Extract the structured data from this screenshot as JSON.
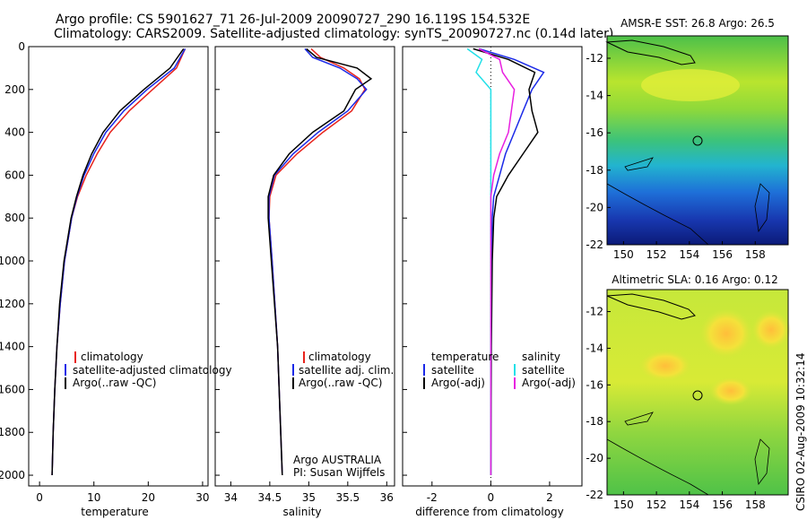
{
  "header": {
    "line1": "Argo profile: CS 5901627_71 26-Jul-2009 20090727_290 16.119S 154.532E",
    "line2": "Climatology: CARS2009. Satellite-adjusted climatology: synTS_20090727.nc (0.14d later)"
  },
  "colors": {
    "climatology": "#e8231c",
    "satellite": "#1b2ae8",
    "argo": "#000000",
    "sat_sal": "#22e0e8",
    "argo_adj_sal": "#e81fe0"
  },
  "chart_data": [
    {
      "type": "line",
      "id": "temperature",
      "xlabel": "temperature",
      "ylabel": "",
      "xlim": [
        -2,
        31
      ],
      "ylim": [
        2050,
        0
      ],
      "xticks": [
        "0",
        "10",
        "20",
        "30"
      ],
      "yticks": [
        "0",
        "200",
        "400",
        "600",
        "800",
        "1000",
        "1200",
        "1400",
        "1600",
        "1800",
        "2000"
      ],
      "legend": [
        "climatology",
        "satellite-adjusted climatology",
        "Argo(..raw -QC)"
      ],
      "series": [
        {
          "name": "climatology",
          "depth": [
            10,
            100,
            200,
            300,
            400,
            500,
            600,
            700,
            800,
            1000,
            1200,
            1400,
            1600,
            1800,
            2000
          ],
          "values": [
            26.8,
            25.2,
            20.8,
            16.5,
            13.0,
            10.6,
            8.6,
            7.0,
            5.9,
            4.6,
            3.8,
            3.2,
            2.8,
            2.5,
            2.3
          ]
        },
        {
          "name": "satellite-adjusted climatology",
          "depth": [
            10,
            100,
            200,
            300,
            400,
            500,
            600,
            700,
            800,
            1000,
            1200,
            1400,
            1600,
            1800,
            2000
          ],
          "values": [
            26.8,
            24.8,
            19.8,
            15.5,
            12.2,
            10.0,
            8.2,
            6.9,
            5.9,
            4.6,
            3.8,
            3.2,
            2.8,
            2.5,
            2.3
          ]
        },
        {
          "name": "Argo(..raw -QC)",
          "depth": [
            10,
            100,
            200,
            300,
            400,
            500,
            600,
            700,
            800,
            1000,
            1200,
            1400,
            1600,
            1800,
            2000
          ],
          "values": [
            26.5,
            24.0,
            19.2,
            14.8,
            11.7,
            9.6,
            8.0,
            6.8,
            5.8,
            4.5,
            3.7,
            3.2,
            2.8,
            2.5,
            2.3
          ]
        }
      ]
    },
    {
      "type": "line",
      "id": "salinity",
      "xlabel": "salinity",
      "xlim": [
        33.8,
        36.1
      ],
      "ylim": [
        2050,
        0
      ],
      "xticks": [
        "34",
        "34.5",
        "35",
        "35.5",
        "36"
      ],
      "legend": [
        "climatology",
        "satellite adj. clim.",
        "Argo(..raw -QC)"
      ],
      "annotation": [
        "Argo AUSTRALIA",
        "PI: Susan Wijffels"
      ],
      "series": [
        {
          "name": "climatology",
          "depth": [
            10,
            50,
            100,
            150,
            200,
            300,
            400,
            500,
            600,
            700,
            800,
            1000,
            1400,
            2000
          ],
          "values": [
            35.03,
            35.15,
            35.45,
            35.65,
            35.72,
            35.55,
            35.18,
            34.85,
            34.58,
            34.5,
            34.49,
            34.53,
            34.6,
            34.66
          ]
        },
        {
          "name": "satellite adj. clim.",
          "depth": [
            10,
            50,
            100,
            150,
            200,
            300,
            400,
            500,
            600,
            700,
            800,
            1000,
            1400,
            2000
          ],
          "values": [
            34.95,
            35.05,
            35.4,
            35.62,
            35.74,
            35.5,
            35.12,
            34.8,
            34.56,
            34.49,
            34.49,
            34.53,
            34.6,
            34.66
          ]
        },
        {
          "name": "Argo(..raw -QC)",
          "depth": [
            10,
            50,
            100,
            150,
            200,
            300,
            400,
            500,
            600,
            700,
            800,
            1000,
            1400,
            2000
          ],
          "values": [
            34.97,
            35.1,
            35.62,
            35.8,
            35.6,
            35.45,
            35.05,
            34.75,
            34.55,
            34.48,
            34.48,
            34.52,
            34.6,
            34.66
          ]
        }
      ]
    },
    {
      "type": "line",
      "id": "difference",
      "xlabel": "difference from climatology",
      "xlim": [
        -3,
        3.1
      ],
      "ylim": [
        2050,
        0
      ],
      "xticks": [
        "-2",
        "0",
        "2"
      ],
      "legend": [
        "temperature",
        "satellite",
        "Argo(-adj)",
        "salinity",
        "satellite",
        "Argo(-adj)"
      ],
      "series": [
        {
          "name": "temperature satellite",
          "depth": [
            10,
            60,
            120,
            200,
            300,
            400,
            500,
            600,
            700,
            800,
            1000,
            1400,
            2000
          ],
          "values": [
            -0.4,
            0.8,
            1.8,
            1.4,
            1.1,
            0.8,
            0.5,
            0.3,
            0.1,
            0.05,
            0.02,
            0.0,
            0.0
          ]
        },
        {
          "name": "temperature Argo(-adj)",
          "depth": [
            10,
            60,
            120,
            200,
            300,
            400,
            500,
            600,
            700,
            800,
            1000,
            1400,
            2000
          ],
          "values": [
            -0.6,
            0.6,
            1.5,
            1.3,
            1.4,
            1.6,
            1.1,
            0.6,
            0.2,
            0.1,
            0.05,
            0.02,
            0.0
          ]
        },
        {
          "name": "salinity satellite",
          "depth": [
            10,
            60,
            120,
            200,
            300,
            400,
            500,
            600,
            700,
            800,
            1000,
            1400,
            2000
          ],
          "values": [
            -0.8,
            -0.3,
            -0.5,
            0.0,
            0.0,
            0.0,
            0.0,
            0.0,
            0.0,
            0.0,
            0.0,
            0.0,
            0.0
          ]
        },
        {
          "name": "salinity Argo(-adj)",
          "depth": [
            10,
            60,
            120,
            200,
            300,
            400,
            500,
            600,
            700,
            800,
            1000,
            1400,
            2000
          ],
          "values": [
            -0.4,
            0.3,
            0.4,
            0.8,
            0.7,
            0.6,
            0.3,
            0.1,
            0.0,
            0.0,
            0.0,
            0.0,
            0.0
          ]
        }
      ]
    },
    {
      "type": "heatmap",
      "id": "sst-map",
      "title": "AMSR-E SST: 26.8 Argo: 26.5",
      "xlim": [
        149,
        160
      ],
      "ylim": [
        -22,
        -10.8
      ],
      "xticks": [
        "150",
        "152",
        "154",
        "156",
        "158"
      ],
      "yticks": [
        "-12",
        "-14",
        "-16",
        "-18",
        "-20",
        "-22"
      ],
      "marker": {
        "lon": 154.532,
        "lat": -16.119
      }
    },
    {
      "type": "heatmap",
      "id": "sla-map",
      "title": "Altimetric SLA: 0.16 Argo: 0.12",
      "xlim": [
        149,
        160
      ],
      "ylim": [
        -22,
        -10.8
      ],
      "xticks": [
        "150",
        "152",
        "154",
        "156",
        "158"
      ],
      "yticks": [
        "-12",
        "-14",
        "-16",
        "-18",
        "-20",
        "-22"
      ],
      "marker": {
        "lon": 154.532,
        "lat": -16.119
      }
    }
  ],
  "footer": {
    "credit": "CSIRO 02-Aug-2009 10:32:14"
  }
}
